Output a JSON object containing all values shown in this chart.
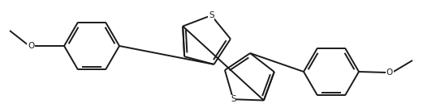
{
  "bg_color": "#ffffff",
  "line_color": "#1a1a1a",
  "line_width": 1.4,
  "fig_width": 5.21,
  "fig_height": 1.39,
  "dpi": 100,
  "xlim": [
    0,
    521
  ],
  "ylim": [
    0,
    139
  ]
}
